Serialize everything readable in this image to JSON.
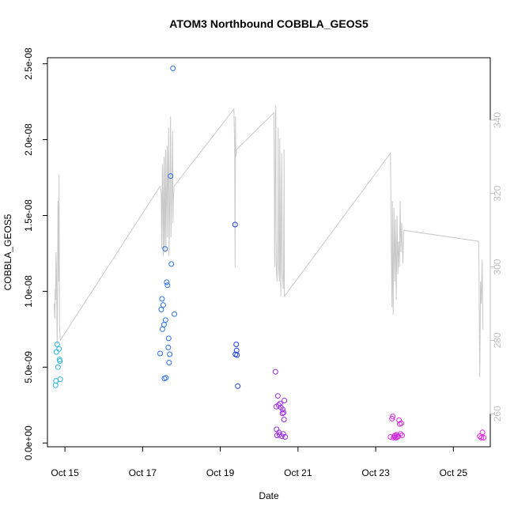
{
  "chart_data": {
    "type": "scatter",
    "title": "ATOM3 Northbound COBBLA_GEOS5",
    "xlabel": "Date",
    "ylabel": "COBBLA_GEOS5",
    "xlim": [
      14.55,
      25.95
    ],
    "ylim": [
      -2.5e-10,
      2.54e-08
    ],
    "y2lim": [
      251,
      357
    ],
    "x_ticks": [
      {
        "value": 15,
        "label": "Oct 15"
      },
      {
        "value": 17,
        "label": "Oct 17"
      },
      {
        "value": 19,
        "label": "Oct 19"
      },
      {
        "value": 21,
        "label": "Oct 21"
      },
      {
        "value": 23,
        "label": "Oct 23"
      },
      {
        "value": 25,
        "label": "Oct 25"
      }
    ],
    "y_ticks": [
      {
        "value": 0,
        "label": "0.0e+00"
      },
      {
        "value": 5e-09,
        "label": "5.0e-09"
      },
      {
        "value": 1e-08,
        "label": "1.0e-08"
      },
      {
        "value": 1.5e-08,
        "label": "1.5e-08"
      },
      {
        "value": 2e-08,
        "label": "2.0e-08"
      },
      {
        "value": 2.5e-08,
        "label": "2.5e-08"
      }
    ],
    "y2_ticks": [
      {
        "value": 260,
        "label": "260"
      },
      {
        "value": 280,
        "label": "280"
      },
      {
        "value": 300,
        "label": "300"
      },
      {
        "value": 320,
        "label": "320"
      },
      {
        "value": 340,
        "label": "340"
      }
    ],
    "grid": false,
    "series": [
      {
        "color": "#2bb5e6",
        "points": [
          [
            14.76,
            3.8e-09
          ],
          [
            14.77,
            4.1e-09
          ],
          [
            14.78,
            6e-09
          ],
          [
            14.8,
            6.5e-09
          ],
          [
            14.82,
            5e-09
          ],
          [
            14.85,
            6.2e-09
          ],
          [
            14.86,
            5.5e-09
          ],
          [
            14.87,
            5.4e-09
          ],
          [
            14.88,
            4.2e-09
          ]
        ]
      },
      {
        "color": "#2b6fe6",
        "points": [
          [
            17.45,
            5.9e-09
          ],
          [
            17.48,
            8.8e-09
          ],
          [
            17.5,
            9.5e-09
          ],
          [
            17.51,
            7.5e-09
          ],
          [
            17.53,
            9.1e-09
          ],
          [
            17.55,
            7.8e-09
          ],
          [
            17.56,
            4.25e-09
          ],
          [
            17.58,
            1.28e-08
          ],
          [
            17.59,
            8.1e-09
          ],
          [
            17.6,
            4.3e-09
          ],
          [
            17.62,
            1.06e-08
          ],
          [
            17.64,
            1.04e-08
          ],
          [
            17.66,
            6.3e-09
          ],
          [
            17.67,
            6.9e-09
          ],
          [
            17.68,
            5.3e-09
          ],
          [
            17.7,
            5.85e-09
          ],
          [
            17.72,
            1.76e-08
          ],
          [
            17.74,
            1.18e-08
          ],
          [
            17.78,
            2.47e-08
          ],
          [
            17.82,
            8.5e-09
          ]
        ]
      },
      {
        "color": "#1e3de6",
        "points": [
          [
            19.38,
            1.44e-08
          ],
          [
            19.39,
            5.85e-09
          ],
          [
            19.41,
            6.5e-09
          ],
          [
            19.42,
            6.1e-09
          ],
          [
            19.43,
            5.8e-09
          ],
          [
            19.45,
            3.75e-09
          ]
        ]
      },
      {
        "color": "#9a2be0",
        "points": [
          [
            20.42,
            4.7e-09
          ],
          [
            20.44,
            2.4e-09
          ],
          [
            20.45,
            9e-10
          ],
          [
            20.46,
            5e-10
          ],
          [
            20.48,
            3.1e-09
          ],
          [
            20.5,
            2.5e-09
          ],
          [
            20.51,
            7e-10
          ],
          [
            20.52,
            5.5e-10
          ],
          [
            20.54,
            2.6e-09
          ],
          [
            20.56,
            2.35e-09
          ],
          [
            20.58,
            4.5e-10
          ],
          [
            20.6,
            1.95e-09
          ],
          [
            20.61,
            2.2e-09
          ],
          [
            20.62,
            6e-10
          ],
          [
            20.63,
            2e-09
          ],
          [
            20.64,
            1.55e-09
          ],
          [
            20.65,
            2.8e-09
          ],
          [
            20.67,
            4e-10
          ]
        ]
      },
      {
        "color": "#d42be0",
        "points": [
          [
            23.38,
            4e-10
          ],
          [
            23.42,
            1.6e-09
          ],
          [
            23.44,
            1.75e-09
          ],
          [
            23.46,
            3.5e-10
          ],
          [
            23.48,
            4.5e-10
          ],
          [
            23.5,
            5e-10
          ],
          [
            23.52,
            3.5e-10
          ],
          [
            23.54,
            5.5e-10
          ],
          [
            23.56,
            4e-10
          ],
          [
            23.58,
            4.5e-10
          ],
          [
            23.6,
            1.5e-09
          ],
          [
            23.62,
            1.25e-09
          ],
          [
            23.64,
            6e-10
          ],
          [
            23.66,
            1.3e-09
          ],
          [
            23.68,
            5e-10
          ]
        ]
      },
      {
        "color": "#e61ee6",
        "points": [
          [
            25.68,
            4.5e-10
          ],
          [
            25.72,
            3.5e-10
          ],
          [
            25.75,
            7e-10
          ],
          [
            25.78,
            3.5e-10
          ]
        ]
      }
    ],
    "secondary_line": {
      "color": "#c8c8c8",
      "points": [
        [
          14.72,
          290
        ],
        [
          14.74,
          286
        ],
        [
          14.75,
          294
        ],
        [
          14.76,
          291
        ],
        [
          14.77,
          304
        ],
        [
          14.78,
          300
        ],
        [
          14.79,
          290
        ],
        [
          14.8,
          279
        ],
        [
          14.81,
          292
        ],
        [
          14.82,
          318
        ],
        [
          14.83,
          314
        ],
        [
          14.84,
          296
        ],
        [
          14.85,
          325
        ],
        [
          14.86,
          285
        ],
        [
          14.87,
          282
        ],
        [
          14.88,
          280
        ],
        [
          17.45,
          322
        ],
        [
          17.48,
          320
        ],
        [
          17.49,
          305
        ],
        [
          17.5,
          318
        ],
        [
          17.51,
          328
        ],
        [
          17.52,
          316
        ],
        [
          17.53,
          303
        ],
        [
          17.54,
          318
        ],
        [
          17.55,
          330
        ],
        [
          17.56,
          304
        ],
        [
          17.57,
          310
        ],
        [
          17.58,
          322
        ],
        [
          17.59,
          332
        ],
        [
          17.6,
          305
        ],
        [
          17.61,
          315
        ],
        [
          17.62,
          323
        ],
        [
          17.63,
          333
        ],
        [
          17.64,
          308
        ],
        [
          17.65,
          320
        ],
        [
          17.67,
          338
        ],
        [
          17.68,
          303
        ],
        [
          17.7,
          318
        ],
        [
          17.72,
          341
        ],
        [
          17.73,
          308
        ],
        [
          17.75,
          320
        ],
        [
          17.77,
          337
        ],
        [
          17.78,
          312
        ],
        [
          17.79,
          318
        ],
        [
          17.81,
          322
        ],
        [
          19.35,
          343
        ],
        [
          19.37,
          332
        ],
        [
          19.38,
          300
        ],
        [
          19.39,
          341
        ],
        [
          19.4,
          330
        ],
        [
          19.42,
          332
        ],
        [
          20.38,
          342
        ],
        [
          20.39,
          322
        ],
        [
          20.4,
          300
        ],
        [
          20.42,
          340
        ],
        [
          20.43,
          344
        ],
        [
          20.44,
          300
        ],
        [
          20.46,
          296
        ],
        [
          20.48,
          310
        ],
        [
          20.49,
          338
        ],
        [
          20.5,
          300
        ],
        [
          20.52,
          296
        ],
        [
          20.53,
          335
        ],
        [
          20.55,
          300
        ],
        [
          20.56,
          292
        ],
        [
          20.58,
          331
        ],
        [
          20.6,
          298
        ],
        [
          20.62,
          294
        ],
        [
          20.63,
          300
        ],
        [
          20.64,
          332
        ],
        [
          20.65,
          292
        ],
        [
          23.38,
          331
        ],
        [
          23.4,
          307
        ],
        [
          23.42,
          289
        ],
        [
          23.43,
          318
        ],
        [
          23.45,
          287
        ],
        [
          23.47,
          316
        ],
        [
          23.49,
          296
        ],
        [
          23.51,
          313
        ],
        [
          23.53,
          291
        ],
        [
          23.55,
          314
        ],
        [
          23.57,
          298
        ],
        [
          23.59,
          307
        ],
        [
          23.61,
          300
        ],
        [
          23.63,
          318
        ],
        [
          23.65,
          304
        ],
        [
          23.67,
          312
        ],
        [
          23.7,
          301
        ],
        [
          23.72,
          310
        ],
        [
          25.65,
          307
        ],
        [
          25.66,
          298
        ],
        [
          25.67,
          283
        ],
        [
          25.68,
          270
        ],
        [
          25.7,
          296
        ],
        [
          25.72,
          290
        ],
        [
          25.74,
          302
        ],
        [
          25.76,
          283
        ]
      ]
    }
  }
}
